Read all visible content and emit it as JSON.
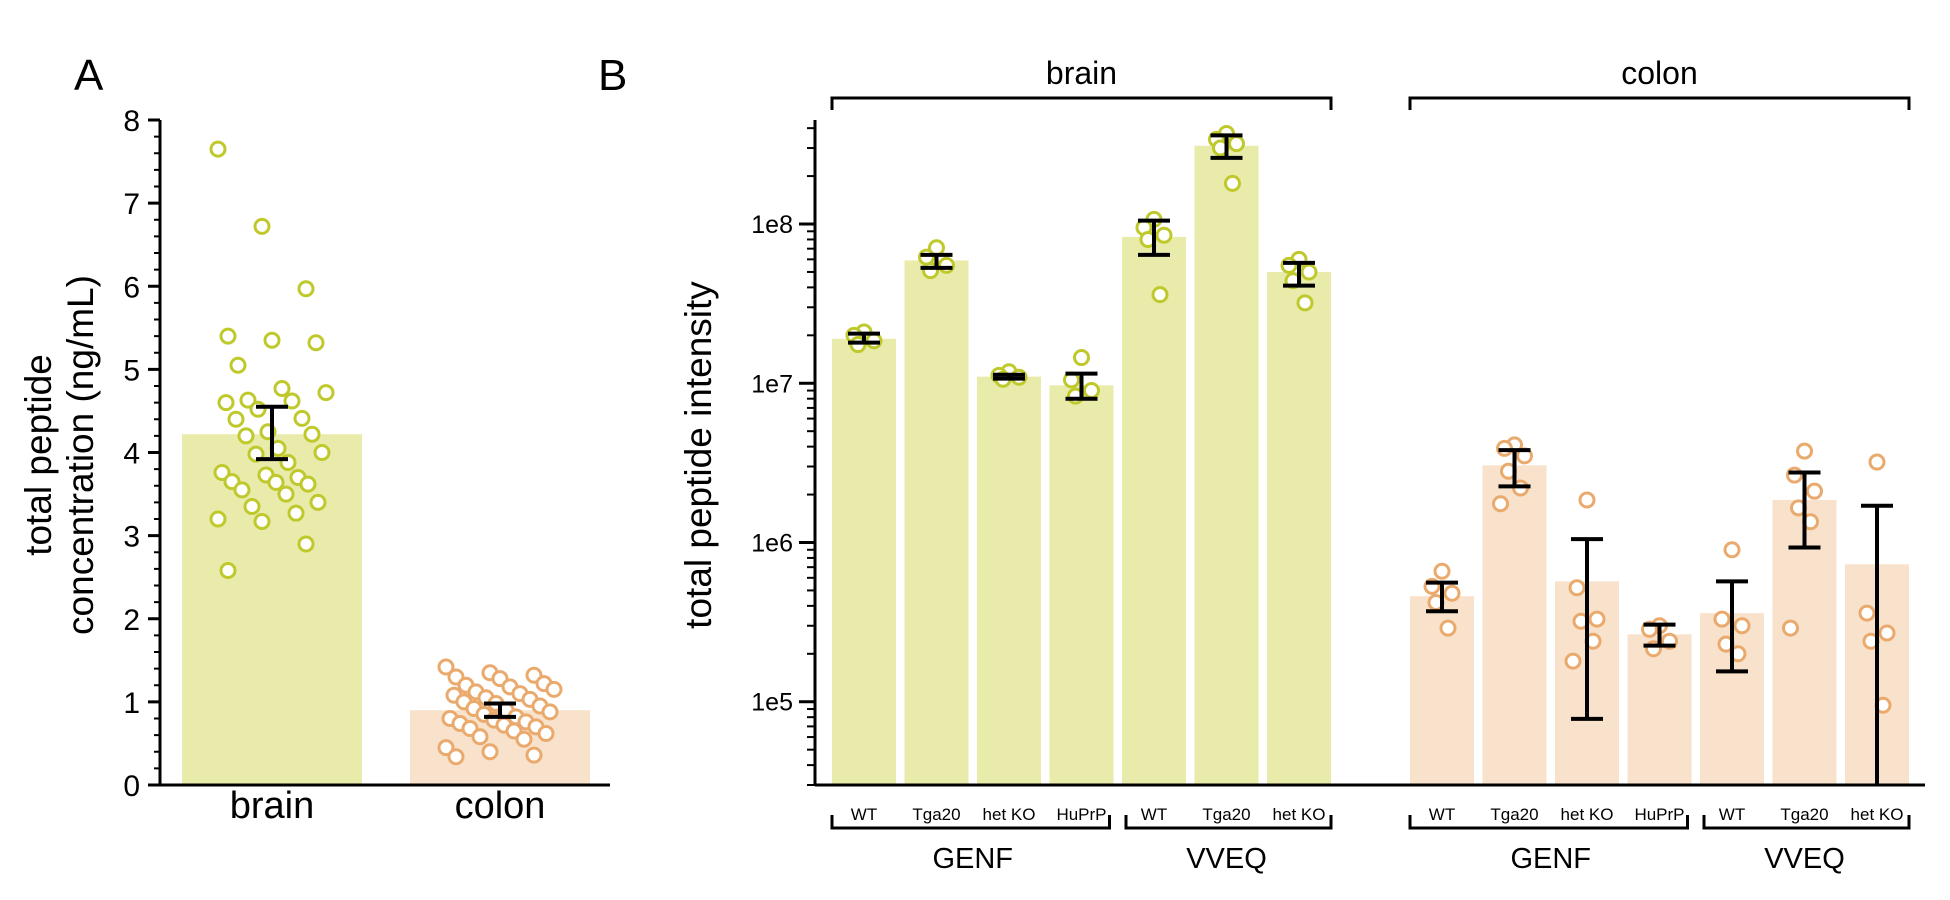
{
  "colors": {
    "brain_fill": "#e8ebaa",
    "brain_point": "#bfc92c",
    "colon_fill": "#f8e2cb",
    "colon_point": "#eaaa6d"
  },
  "chart_data": [
    {
      "panel": "A",
      "type": "bar",
      "categories": [
        "brain",
        "colon"
      ],
      "ylabel": [
        "total peptide",
        "concentration (ng/mL)"
      ],
      "ylim": [
        0,
        8
      ],
      "yticks": [
        "0",
        "1",
        "2",
        "3",
        "4",
        "5",
        "6",
        "7",
        "8"
      ],
      "bars": [
        {
          "category": "brain",
          "mean": 4.22,
          "err_low": 3.92,
          "err_high": 4.55,
          "points": [
            7.65,
            6.72,
            5.97,
            5.4,
            5.35,
            5.32,
            5.05,
            4.77,
            4.72,
            4.63,
            4.62,
            4.6,
            4.52,
            4.41,
            4.4,
            4.25,
            4.22,
            4.2,
            4.05,
            4.0,
            3.98,
            3.88,
            3.76,
            3.73,
            3.7,
            3.65,
            3.64,
            3.62,
            3.55,
            3.5,
            3.4,
            3.35,
            3.27,
            3.2,
            3.17,
            2.9,
            2.58
          ]
        },
        {
          "category": "colon",
          "mean": 0.9,
          "err_low": 0.82,
          "err_high": 0.98,
          "points": [
            1.42,
            1.35,
            1.32,
            1.3,
            1.28,
            1.22,
            1.2,
            1.18,
            1.15,
            1.12,
            1.1,
            1.08,
            1.05,
            1.03,
            1.0,
            0.98,
            0.95,
            0.92,
            0.9,
            0.88,
            0.85,
            0.82,
            0.8,
            0.78,
            0.76,
            0.74,
            0.72,
            0.7,
            0.68,
            0.65,
            0.62,
            0.58,
            0.55,
            0.45,
            0.4,
            0.36,
            0.34
          ]
        }
      ]
    },
    {
      "panel": "B",
      "type": "bar",
      "yscale": "log",
      "ylabel": "total peptide intensity",
      "ylim": [
        30000,
        450000000
      ],
      "yticks": [
        {
          "value": 100000,
          "label": "1e5"
        },
        {
          "value": 1000000,
          "label": "1e6"
        },
        {
          "value": 10000000,
          "label": "1e7"
        },
        {
          "value": 100000000,
          "label": "1e8"
        }
      ],
      "tissues": [
        {
          "name": "brain",
          "color": "brain",
          "groups": [
            {
              "name": "GENF",
              "bars": [
                {
                  "label": "WT",
                  "mean": 19000000,
                  "err_low": 18000000,
                  "err_high": 20500000,
                  "points": [
                    21000000,
                    20000000,
                    18500000,
                    17500000
                  ]
                },
                {
                  "label": "Tga20",
                  "mean": 59000000,
                  "err_low": 53000000,
                  "err_high": 64000000,
                  "points": [
                    71000000,
                    62000000,
                    55000000,
                    51000000
                  ]
                },
                {
                  "label": "het KO",
                  "mean": 11000000,
                  "err_low": 10700000,
                  "err_high": 11300000,
                  "points": [
                    11800000,
                    11200000,
                    10900000,
                    10600000
                  ]
                },
                {
                  "label": "HuPrP",
                  "mean": 9700000,
                  "err_low": 8000000,
                  "err_high": 11500000,
                  "points": [
                    14500000,
                    10500000,
                    9000000,
                    8300000
                  ]
                }
              ]
            },
            {
              "name": "VVEQ",
              "bars": [
                {
                  "label": "WT",
                  "mean": 83000000,
                  "err_low": 64000000,
                  "err_high": 105000000,
                  "points": [
                    107000000,
                    95000000,
                    85000000,
                    80000000,
                    36000000
                  ]
                },
                {
                  "label": "Tga20",
                  "mean": 310000000,
                  "err_low": 260000000,
                  "err_high": 360000000,
                  "points": [
                    370000000,
                    340000000,
                    320000000,
                    300000000,
                    180000000
                  ]
                },
                {
                  "label": "het KO",
                  "mean": 50000000,
                  "err_low": 41000000,
                  "err_high": 57000000,
                  "points": [
                    60000000,
                    55000000,
                    50000000,
                    44000000,
                    32000000
                  ]
                }
              ]
            }
          ]
        },
        {
          "name": "colon",
          "color": "colon",
          "groups": [
            {
              "name": "GENF",
              "bars": [
                {
                  "label": "WT",
                  "mean": 460000,
                  "err_low": 370000,
                  "err_high": 560000,
                  "points": [
                    660000,
                    530000,
                    480000,
                    420000,
                    290000
                  ]
                },
                {
                  "label": "Tga20",
                  "mean": 3050000,
                  "err_low": 2250000,
                  "err_high": 3800000,
                  "points": [
                    4100000,
                    3900000,
                    3500000,
                    2800000,
                    2200000,
                    1750000
                  ]
                },
                {
                  "label": "het KO",
                  "mean": 570000,
                  "err_low": 78000,
                  "err_high": 1050000,
                  "points": [
                    1850000,
                    520000,
                    330000,
                    320000,
                    240000,
                    180000
                  ]
                },
                {
                  "label": "HuPrP",
                  "mean": 265000,
                  "err_low": 225000,
                  "err_high": 305000,
                  "points": [
                    300000,
                    285000,
                    240000,
                    215000
                  ]
                }
              ]
            },
            {
              "name": "VVEQ",
              "bars": [
                {
                  "label": "WT",
                  "mean": 360000,
                  "err_low": 155000,
                  "err_high": 570000,
                  "points": [
                    900000,
                    330000,
                    300000,
                    230000,
                    200000
                  ]
                },
                {
                  "label": "Tga20",
                  "mean": 1850000,
                  "err_low": 930000,
                  "err_high": 2750000,
                  "points": [
                    3750000,
                    2650000,
                    2100000,
                    1650000,
                    1350000,
                    290000
                  ]
                },
                {
                  "label": "het KO",
                  "mean": 730000,
                  "err_low": 30000,
                  "err_high": 1700000,
                  "points": [
                    3200000,
                    360000,
                    270000,
                    240000,
                    95000
                  ]
                }
              ]
            }
          ]
        }
      ]
    }
  ]
}
